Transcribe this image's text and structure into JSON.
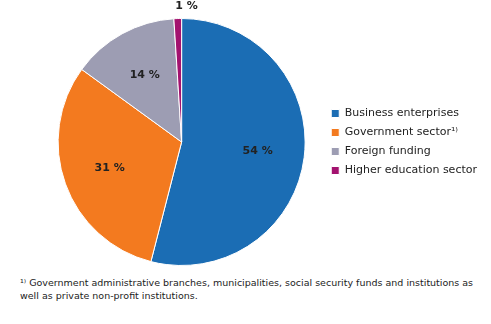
{
  "chart_data": {
    "type": "pie",
    "categories": [
      "Business enterprises",
      "Government sector¹⁾",
      "Foreign funding",
      "Higher education sector"
    ],
    "values": [
      54,
      31,
      14,
      1
    ],
    "value_labels": [
      "54 %",
      "31 %",
      "14 %",
      "1 %"
    ],
    "colors": [
      "#1b6db4",
      "#f37a1f",
      "#9d9db3",
      "#a3126f"
    ],
    "data_labels": true,
    "legend": "right",
    "annotations": [
      "¹⁾ Government administrative branches, municipalities, social security funds and institutions as well as private non-profit institutions."
    ]
  }
}
